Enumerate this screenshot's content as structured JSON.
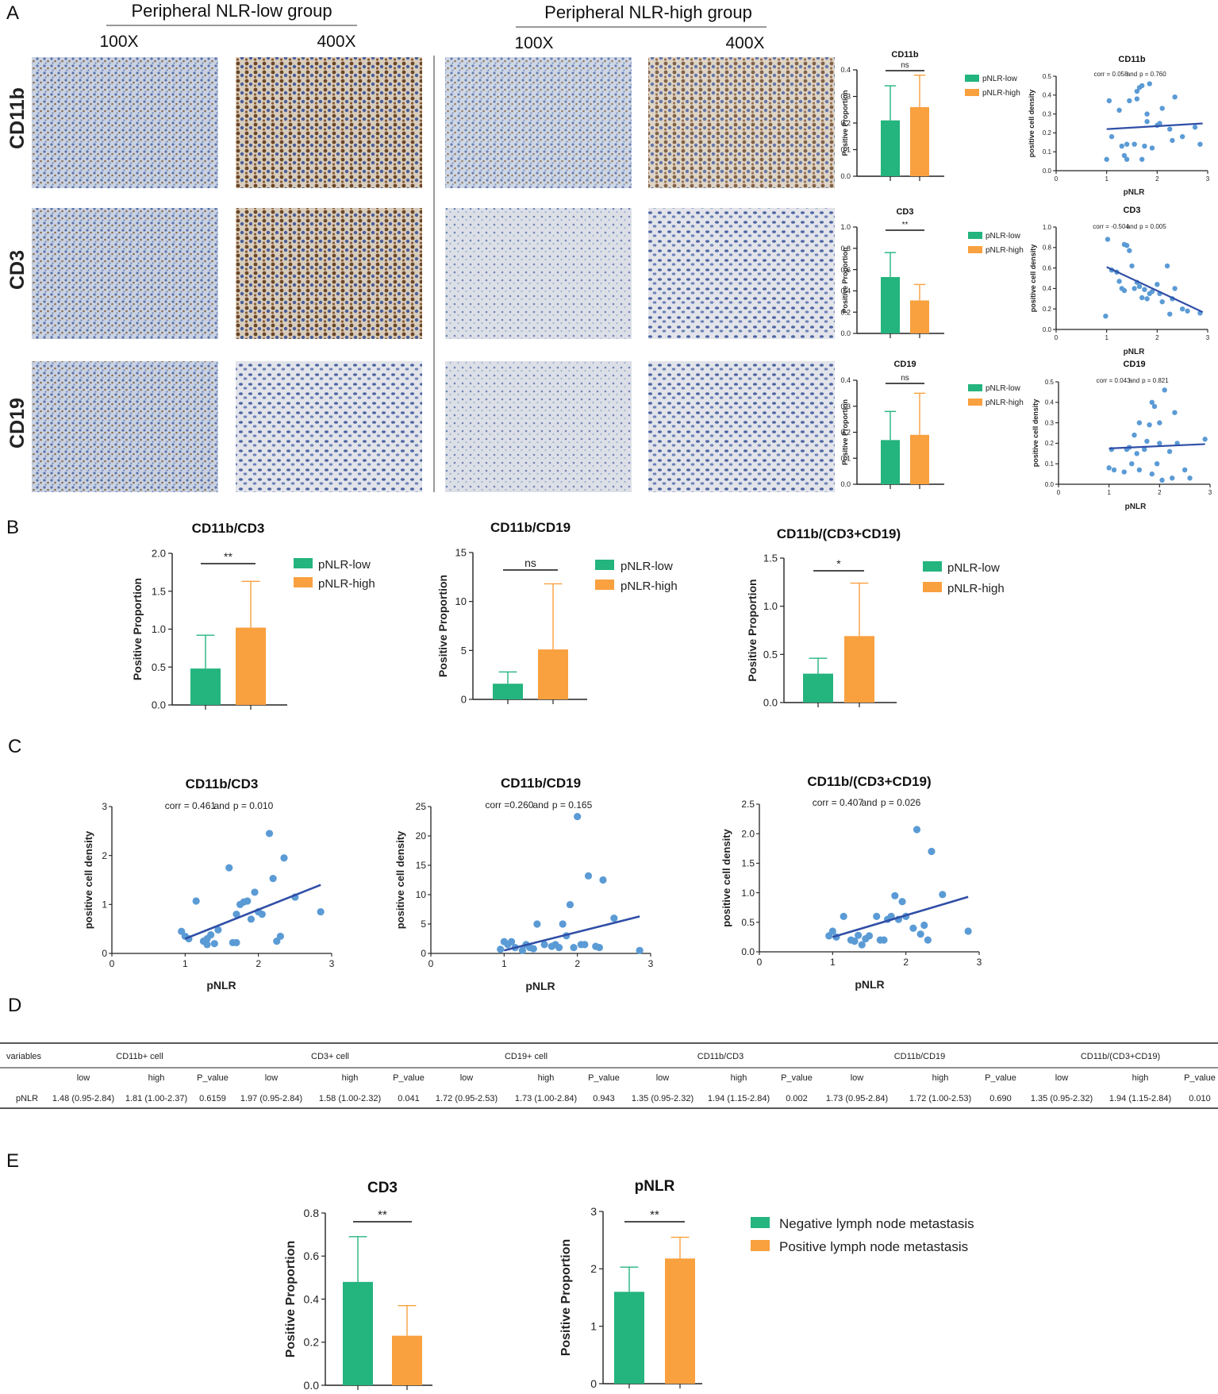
{
  "colors": {
    "low": "#24b47e",
    "high": "#f9a03f",
    "trend": "#2f4ea6",
    "dot": "#5b9bd5",
    "axis": "#222222"
  },
  "panels": {
    "a": "A",
    "b": "B",
    "c": "C",
    "d": "D",
    "e": "E"
  },
  "ihc": {
    "group_low": "Peripheral NLR-low group",
    "group_high": "Peripheral NLR-high group",
    "mag_100": "100X",
    "mag_400": "400X",
    "rows": [
      "CD11b",
      "CD3",
      "CD19"
    ]
  },
  "chart_data": [
    {
      "id": "a_bar_cd11b",
      "type": "bar",
      "title": "CD11b",
      "ylabel": "Positive Proportion",
      "ylim": [
        0,
        0.4
      ],
      "yticks": [
        0.0,
        0.1,
        0.2,
        0.3,
        0.4
      ],
      "series": [
        {
          "name": "pNLR-low",
          "value": 0.21,
          "error": 0.13
        },
        {
          "name": "pNLR-high",
          "value": 0.26,
          "error": 0.12
        }
      ],
      "significance": "ns"
    },
    {
      "id": "a_bar_cd3",
      "type": "bar",
      "title": "CD3",
      "ylabel": "Positive Proportion",
      "ylim": [
        0,
        1.0
      ],
      "yticks": [
        0.0,
        0.2,
        0.4,
        0.6,
        0.8,
        1.0
      ],
      "series": [
        {
          "name": "pNLR-low",
          "value": 0.53,
          "error": 0.23
        },
        {
          "name": "pNLR-high",
          "value": 0.31,
          "error": 0.15
        }
      ],
      "significance": "**"
    },
    {
      "id": "a_bar_cd19",
      "type": "bar",
      "title": "CD19",
      "ylabel": "Positive Proportion",
      "ylim": [
        0,
        0.4
      ],
      "yticks": [
        0.0,
        0.1,
        0.2,
        0.3,
        0.4
      ],
      "series": [
        {
          "name": "pNLR-low",
          "value": 0.17,
          "error": 0.11
        },
        {
          "name": "pNLR-high",
          "value": 0.19,
          "error": 0.16
        }
      ],
      "significance": "ns"
    },
    {
      "id": "a_sc_cd11b",
      "type": "scatter",
      "title": "CD11b",
      "annotation_corr": "corr = 0.058",
      "annotation_and": "and",
      "annotation_p": "p = 0.760",
      "xlabel": "pNLR",
      "ylabel": "positive cell density",
      "xlim": [
        0,
        3
      ],
      "ylim": [
        0,
        0.5
      ],
      "xticks": [
        0,
        1,
        2,
        3
      ],
      "yticks": [
        0.0,
        0.1,
        0.2,
        0.3,
        0.4,
        0.5
      ],
      "points": [
        [
          1.0,
          0.06
        ],
        [
          1.05,
          0.37
        ],
        [
          1.1,
          0.18
        ],
        [
          1.25,
          0.32
        ],
        [
          1.3,
          0.13
        ],
        [
          1.35,
          0.08
        ],
        [
          1.4,
          0.06
        ],
        [
          1.4,
          0.14
        ],
        [
          1.45,
          0.37
        ],
        [
          1.55,
          0.14
        ],
        [
          1.6,
          0.38
        ],
        [
          1.6,
          0.42
        ],
        [
          1.65,
          0.44
        ],
        [
          1.7,
          0.45
        ],
        [
          1.7,
          0.06
        ],
        [
          1.75,
          0.13
        ],
        [
          1.8,
          0.26
        ],
        [
          1.8,
          0.3
        ],
        [
          1.85,
          0.46
        ],
        [
          1.9,
          0.12
        ],
        [
          2.0,
          0.24
        ],
        [
          2.05,
          0.25
        ],
        [
          2.1,
          0.33
        ],
        [
          2.25,
          0.22
        ],
        [
          2.3,
          0.16
        ],
        [
          2.35,
          0.39
        ],
        [
          2.5,
          0.18
        ],
        [
          2.75,
          0.23
        ],
        [
          2.85,
          0.14
        ]
      ],
      "trend": [
        [
          1.0,
          0.22
        ],
        [
          2.9,
          0.25
        ]
      ]
    },
    {
      "id": "a_sc_cd3",
      "type": "scatter",
      "title": "CD3",
      "annotation_corr": "corr = -0.504",
      "annotation_and": "and",
      "annotation_p": "p = 0.005",
      "xlabel": "pNLR",
      "ylabel": "positive cell density",
      "xlim": [
        0,
        3
      ],
      "ylim": [
        0,
        1.0
      ],
      "xticks": [
        0,
        1,
        2,
        3
      ],
      "yticks": [
        0.0,
        0.2,
        0.4,
        0.6,
        0.8,
        1.0
      ],
      "points": [
        [
          0.98,
          0.13
        ],
        [
          1.02,
          0.88
        ],
        [
          1.1,
          0.58
        ],
        [
          1.2,
          0.56
        ],
        [
          1.25,
          0.47
        ],
        [
          1.3,
          0.4
        ],
        [
          1.35,
          0.83
        ],
        [
          1.35,
          0.38
        ],
        [
          1.4,
          0.82
        ],
        [
          1.45,
          0.77
        ],
        [
          1.5,
          0.62
        ],
        [
          1.55,
          0.4
        ],
        [
          1.6,
          0.46
        ],
        [
          1.65,
          0.42
        ],
        [
          1.7,
          0.31
        ],
        [
          1.75,
          0.39
        ],
        [
          1.8,
          0.3
        ],
        [
          1.85,
          0.35
        ],
        [
          1.9,
          0.37
        ],
        [
          2.0,
          0.44
        ],
        [
          2.05,
          0.35
        ],
        [
          2.1,
          0.27
        ],
        [
          2.2,
          0.62
        ],
        [
          2.25,
          0.15
        ],
        [
          2.3,
          0.3
        ],
        [
          2.35,
          0.4
        ],
        [
          2.5,
          0.2
        ],
        [
          2.6,
          0.18
        ],
        [
          2.85,
          0.16
        ]
      ],
      "trend": [
        [
          1.0,
          0.61
        ],
        [
          2.9,
          0.17
        ]
      ]
    },
    {
      "id": "a_sc_cd19",
      "type": "scatter",
      "title": "CD19",
      "annotation_corr": "corr = 0.043",
      "annotation_and": "and",
      "annotation_p": "p = 0.821",
      "xlabel": "pNLR",
      "ylabel": "positive cell density",
      "xlim": [
        0,
        3
      ],
      "ylim": [
        0,
        0.5
      ],
      "xticks": [
        0,
        1,
        2,
        3
      ],
      "yticks": [
        0.0,
        0.1,
        0.2,
        0.3,
        0.4,
        0.5
      ],
      "points": [
        [
          1.0,
          0.08
        ],
        [
          1.05,
          0.17
        ],
        [
          1.1,
          0.07
        ],
        [
          1.3,
          0.06
        ],
        [
          1.35,
          0.17
        ],
        [
          1.4,
          0.18
        ],
        [
          1.45,
          0.1
        ],
        [
          1.5,
          0.24
        ],
        [
          1.55,
          0.15
        ],
        [
          1.6,
          0.3
        ],
        [
          1.6,
          0.07
        ],
        [
          1.7,
          0.17
        ],
        [
          1.75,
          0.21
        ],
        [
          1.8,
          0.29
        ],
        [
          1.85,
          0.4
        ],
        [
          1.85,
          0.05
        ],
        [
          1.9,
          0.38
        ],
        [
          1.95,
          0.1
        ],
        [
          2.0,
          0.2
        ],
        [
          2.0,
          0.3
        ],
        [
          2.05,
          0.02
        ],
        [
          2.1,
          0.46
        ],
        [
          2.2,
          0.16
        ],
        [
          2.25,
          0.03
        ],
        [
          2.3,
          0.35
        ],
        [
          2.35,
          0.2
        ],
        [
          2.5,
          0.07
        ],
        [
          2.6,
          0.03
        ],
        [
          2.9,
          0.22
        ]
      ],
      "trend": [
        [
          1.0,
          0.175
        ],
        [
          2.9,
          0.196
        ]
      ]
    },
    {
      "id": "b_cd11b_cd3",
      "type": "bar",
      "title": "CD11b/CD3",
      "ylabel": "Positive Proportion",
      "ylim": [
        0,
        2.0
      ],
      "yticks": [
        0.0,
        0.5,
        1.0,
        1.5,
        2.0
      ],
      "series": [
        {
          "name": "pNLR-low",
          "value": 0.48,
          "error": 0.44
        },
        {
          "name": "pNLR-high",
          "value": 1.02,
          "error": 0.61
        }
      ],
      "significance": "**"
    },
    {
      "id": "b_cd11b_cd19",
      "type": "bar",
      "title": "CD11b/CD19",
      "ylabel": "Positive Proportion",
      "ylim": [
        0,
        15
      ],
      "yticks": [
        0,
        5,
        10,
        15
      ],
      "series": [
        {
          "name": "pNLR-low",
          "value": 1.6,
          "error": 1.2
        },
        {
          "name": "pNLR-high",
          "value": 5.1,
          "error": 6.7
        }
      ],
      "significance": "ns"
    },
    {
      "id": "b_cd11b_cd3cd19",
      "type": "bar",
      "title": "CD11b/(CD3+CD19)",
      "ylabel": "Positive Proportion",
      "ylim": [
        0,
        1.5
      ],
      "yticks": [
        0.0,
        0.5,
        1.0,
        1.5
      ],
      "series": [
        {
          "name": "pNLR-low",
          "value": 0.3,
          "error": 0.16
        },
        {
          "name": "pNLR-high",
          "value": 0.69,
          "error": 0.55
        }
      ],
      "significance": "*"
    },
    {
      "id": "c_cd11b_cd3",
      "type": "scatter",
      "title": "CD11b/CD3",
      "annotation_corr": "corr = 0.461",
      "annotation_and": "and",
      "annotation_p": "p = 0.010",
      "xlabel": "pNLR",
      "ylabel": "positive cell density",
      "xlim": [
        0,
        3
      ],
      "ylim": [
        0,
        3
      ],
      "xticks": [
        0,
        1,
        2,
        3
      ],
      "yticks": [
        0,
        1,
        2,
        3
      ],
      "points": [
        [
          0.95,
          0.45
        ],
        [
          1.0,
          0.35
        ],
        [
          1.05,
          0.3
        ],
        [
          1.15,
          1.07
        ],
        [
          1.25,
          0.25
        ],
        [
          1.3,
          0.3
        ],
        [
          1.3,
          0.18
        ],
        [
          1.35,
          0.38
        ],
        [
          1.4,
          0.2
        ],
        [
          1.45,
          0.48
        ],
        [
          1.6,
          1.75
        ],
        [
          1.65,
          0.22
        ],
        [
          1.7,
          0.22
        ],
        [
          1.7,
          0.8
        ],
        [
          1.75,
          1.0
        ],
        [
          1.8,
          1.05
        ],
        [
          1.85,
          1.07
        ],
        [
          1.9,
          0.7
        ],
        [
          1.95,
          1.25
        ],
        [
          2.0,
          0.85
        ],
        [
          2.05,
          0.8
        ],
        [
          2.15,
          2.45
        ],
        [
          2.2,
          1.53
        ],
        [
          2.25,
          0.25
        ],
        [
          2.3,
          0.35
        ],
        [
          2.35,
          1.95
        ],
        [
          2.5,
          1.15
        ],
        [
          2.85,
          0.85
        ]
      ],
      "trend": [
        [
          1.0,
          0.3
        ],
        [
          2.85,
          1.4
        ]
      ]
    },
    {
      "id": "c_cd11b_cd19",
      "type": "scatter",
      "title": "CD11b/CD19",
      "annotation_corr": "corr =0.260",
      "annotation_and": "and",
      "annotation_p": "p = 0.165",
      "xlabel": "pNLR",
      "ylabel": "positive cell density",
      "xlim": [
        0,
        3
      ],
      "ylim": [
        0,
        25
      ],
      "xticks": [
        0,
        1,
        2,
        3
      ],
      "yticks": [
        0,
        5,
        10,
        15,
        20,
        25
      ],
      "points": [
        [
          0.95,
          0.7
        ],
        [
          1.0,
          2.0
        ],
        [
          1.05,
          1.5
        ],
        [
          1.1,
          2.0
        ],
        [
          1.15,
          1.0
        ],
        [
          1.25,
          0.5
        ],
        [
          1.3,
          1.5
        ],
        [
          1.35,
          1.0
        ],
        [
          1.4,
          0.8
        ],
        [
          1.45,
          5.0
        ],
        [
          1.55,
          1.5
        ],
        [
          1.65,
          1.2
        ],
        [
          1.7,
          1.5
        ],
        [
          1.75,
          1.0
        ],
        [
          1.8,
          5.0
        ],
        [
          1.85,
          3.0
        ],
        [
          1.9,
          8.3
        ],
        [
          1.95,
          1.0
        ],
        [
          2.0,
          23.3
        ],
        [
          2.05,
          1.5
        ],
        [
          2.1,
          1.5
        ],
        [
          2.15,
          13.2
        ],
        [
          2.25,
          1.2
        ],
        [
          2.3,
          1.0
        ],
        [
          2.35,
          12.5
        ],
        [
          2.5,
          6.0
        ],
        [
          2.85,
          0.5
        ]
      ],
      "trend": [
        [
          1.0,
          0.5
        ],
        [
          2.85,
          6.3
        ]
      ]
    },
    {
      "id": "c_cd11b_cd3cd19",
      "type": "scatter",
      "title": "CD11b/(CD3+CD19)",
      "annotation_corr": "corr = 0.407",
      "annotation_and": "and",
      "annotation_p": "p = 0.026",
      "xlabel": "pNLR",
      "ylabel": "positive cell density",
      "xlim": [
        0,
        3
      ],
      "ylim": [
        0,
        2.5
      ],
      "xticks": [
        0,
        1,
        2,
        3
      ],
      "yticks": [
        0.0,
        0.5,
        1.0,
        1.5,
        2.0,
        2.5
      ],
      "points": [
        [
          0.95,
          0.27
        ],
        [
          1.0,
          0.35
        ],
        [
          1.05,
          0.25
        ],
        [
          1.15,
          0.6
        ],
        [
          1.25,
          0.2
        ],
        [
          1.3,
          0.18
        ],
        [
          1.35,
          0.28
        ],
        [
          1.4,
          0.12
        ],
        [
          1.45,
          0.22
        ],
        [
          1.5,
          0.27
        ],
        [
          1.6,
          0.6
        ],
        [
          1.65,
          0.2
        ],
        [
          1.7,
          0.2
        ],
        [
          1.75,
          0.55
        ],
        [
          1.8,
          0.6
        ],
        [
          1.85,
          0.95
        ],
        [
          1.9,
          0.55
        ],
        [
          1.95,
          0.85
        ],
        [
          2.0,
          0.6
        ],
        [
          2.1,
          0.4
        ],
        [
          2.15,
          2.07
        ],
        [
          2.2,
          0.3
        ],
        [
          2.25,
          0.45
        ],
        [
          2.3,
          0.2
        ],
        [
          2.35,
          1.7
        ],
        [
          2.5,
          0.97
        ],
        [
          2.85,
          0.35
        ]
      ],
      "trend": [
        [
          1.0,
          0.25
        ],
        [
          2.85,
          0.93
        ]
      ]
    },
    {
      "id": "e_cd3",
      "type": "bar",
      "title": "CD3",
      "ylabel": "Positive Proportion",
      "ylim": [
        0,
        0.8
      ],
      "yticks": [
        0.0,
        0.2,
        0.4,
        0.6,
        0.8
      ],
      "series": [
        {
          "name": "Negative lymph node metastasis",
          "value": 0.48,
          "error": 0.21
        },
        {
          "name": "Positive lymph node metastasis",
          "value": 0.23,
          "error": 0.14
        }
      ],
      "significance": "**"
    },
    {
      "id": "e_pnlr",
      "type": "bar",
      "title": "pNLR",
      "ylabel": "Positive Proportion",
      "ylim": [
        0,
        3
      ],
      "yticks": [
        0,
        1,
        2,
        3
      ],
      "series": [
        {
          "name": "Negative lymph node metastasis",
          "value": 1.6,
          "error": 0.43
        },
        {
          "name": "Positive lymph node metastasis",
          "value": 2.18,
          "error": 0.37
        }
      ],
      "significance": "**"
    }
  ],
  "legends": {
    "pnlr_low": "pNLR-low",
    "pnlr_high": "pNLR-high",
    "neg_ln": "Negative lymph node metastasis",
    "pos_ln": "Positive lymph node metastasis"
  },
  "table": {
    "corner": "variables",
    "groups": [
      "CD11b+ cell",
      "CD3+ cell",
      "CD19+ cell",
      "CD11b/CD3",
      "CD11b/CD19",
      "CD11b/(CD3+CD19)"
    ],
    "subheaders": [
      "low",
      "high",
      "P_value"
    ],
    "row_label": "pNLR",
    "values": [
      "1.48 (0.95-2.84)",
      "1.81 (1.00-2.37)",
      "0.6159",
      "1.97 (0.95-2.84)",
      "1.58 (1.00-2.32)",
      "0.041",
      "1.72 (0.95-2.53)",
      "1.73 (1.00-2.84)",
      "0.943",
      "1.35 (0.95-2.32)",
      "1.94 (1.15-2.84)",
      "0.002",
      "1.73 (0.95-2.84)",
      "1.72 (1.00-2.53)",
      "0.690",
      "1.35 (0.95-2.32)",
      "1.94 (1.15-2.84)",
      "0.010"
    ]
  }
}
